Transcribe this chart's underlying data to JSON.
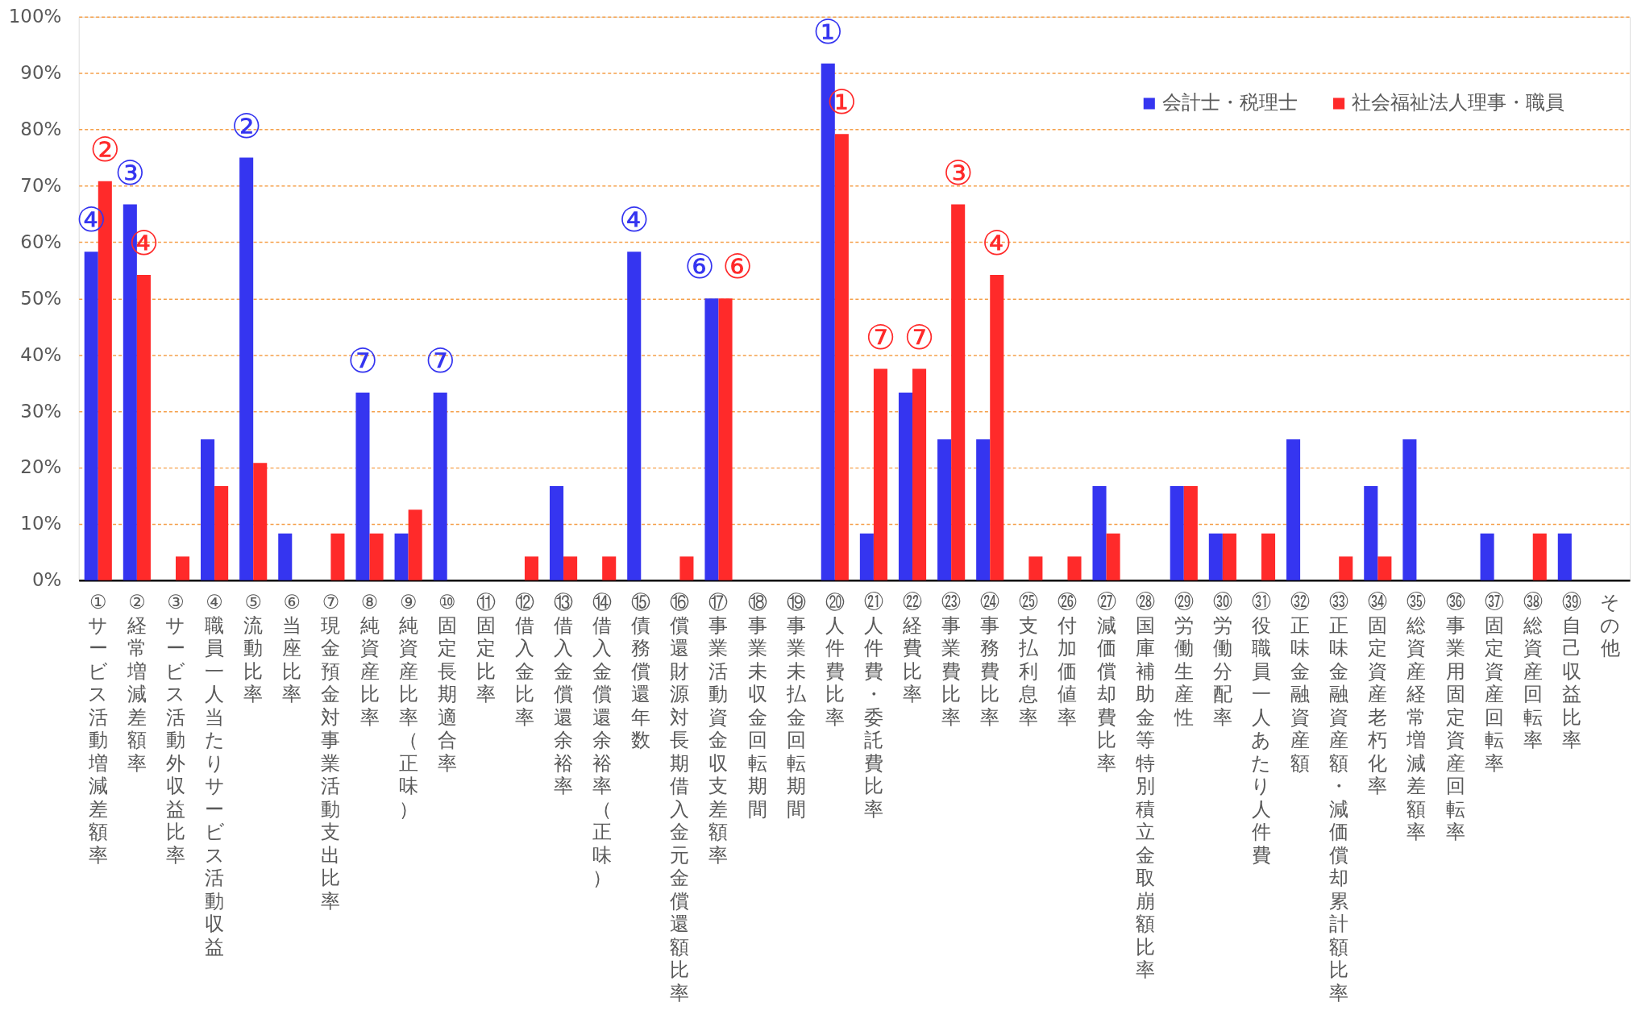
{
  "chart_data": {
    "type": "bar",
    "categories": [
      "①サービス活動増減差額率",
      "②経常増減差額率",
      "③サービス活動外収益比率",
      "④職員一人当たりサービス活動収益",
      "⑤流動比率",
      "⑥当座比率",
      "⑦現金預金対事業活動支出比率",
      "⑧純資産比率",
      "⑨純資産比率（正味）",
      "⑩固定長期適合率",
      "⑪固定比率",
      "⑫借入金比率",
      "⑬借入金償還余裕率",
      "⑭借入金償還余裕率（正味）",
      "⑮債務償還年数",
      "⑯償還財源対長期借入金元金償還額比率",
      "⑰事業活動資金収支差額率",
      "⑱事業未収金回転期間",
      "⑲事業未払金回転期間",
      "⑳人件費比率",
      "㉑人件費・委託費比率",
      "㉒経費比率",
      "㉓事業費比率",
      "㉔事務費比率",
      "㉕支払利息率",
      "㉖付加価値率",
      "㉗減価償却費比率",
      "㉘国庫補助金等特別積立金取崩額比率",
      "㉙労働生産性",
      "㉚労働分配率",
      "㉛役職員一人あたり人件費",
      "㉜正味金融資産額",
      "㉝正味金融資産額・減価償却累計額比率",
      "㉞固定資産老朽化率",
      "㉟総資産経常増減差額率",
      "㊱事業用固定資産回転率",
      "㊲固定資産回転率",
      "㊳総資産回転率",
      "㊴自己収益比率",
      "その他"
    ],
    "series": [
      {
        "name": "会計士・税理士",
        "color": "#3535f0",
        "values": [
          58.3,
          66.7,
          0,
          25,
          75,
          8.3,
          0,
          33.3,
          8.3,
          33.3,
          0,
          0,
          16.7,
          0,
          58.3,
          0,
          50,
          0,
          0,
          91.7,
          8.3,
          33.3,
          25,
          25,
          0,
          0,
          16.7,
          0,
          16.7,
          8.3,
          0,
          25,
          0,
          16.7,
          25,
          0,
          8.3,
          0,
          8.3,
          0
        ]
      },
      {
        "name": "社会福祉法人理事・職員",
        "color": "#ff2a2a",
        "values": [
          70.8,
          54.2,
          4.2,
          16.7,
          20.8,
          0,
          8.3,
          8.3,
          12.5,
          0,
          0,
          4.2,
          4.2,
          4.2,
          0,
          4.2,
          50,
          0,
          0,
          79.2,
          37.5,
          37.5,
          66.7,
          54.2,
          4.2,
          4.2,
          8.3,
          0,
          16.7,
          8.3,
          8.3,
          0,
          4.2,
          4.2,
          0,
          0,
          0,
          8.3,
          0,
          0
        ]
      }
    ],
    "ylim": [
      0,
      100
    ],
    "yticks": [
      {
        "value": 0,
        "label": "0%"
      },
      {
        "value": 10,
        "label": "10%"
      },
      {
        "value": 20,
        "label": "20%"
      },
      {
        "value": 30,
        "label": "30%"
      },
      {
        "value": 40,
        "label": "40%"
      },
      {
        "value": 50,
        "label": "50%"
      },
      {
        "value": 60,
        "label": "60%"
      },
      {
        "value": 70,
        "label": "70%"
      },
      {
        "value": 80,
        "label": "80%"
      },
      {
        "value": 90,
        "label": "90%"
      },
      {
        "value": 100,
        "label": "100%"
      }
    ],
    "grid": "y",
    "legend": "top right",
    "annotations": [
      {
        "text": "①",
        "x": "⑳人件費比率",
        "y": 91.7
      },
      {
        "text": "①",
        "x": "⑳人件費比率",
        "y": 79.2
      },
      {
        "text": "②",
        "x": "⑤流動比率",
        "y": 75
      },
      {
        "text": "②",
        "x": "①サービス活動増減差額率",
        "y": 70.8
      },
      {
        "text": "③",
        "x": "②経常増減差額率",
        "y": 66.7
      },
      {
        "text": "③",
        "x": "㉓事業費比率",
        "y": 66.7
      },
      {
        "text": "④",
        "x": "①サービス活動増減差額率",
        "y": 58.3
      },
      {
        "text": "④",
        "x": "⑮債務償還年数",
        "y": 58.3
      },
      {
        "text": "④",
        "x": "②経常増減差額率",
        "y": 54.2
      },
      {
        "text": "④",
        "x": "㉔事務費比率",
        "y": 54.2
      },
      {
        "text": "⑥",
        "x": "⑰事業活動資金収支差額率",
        "y": 50
      },
      {
        "text": "⑥",
        "x": "⑰事業活動資金収支差額率",
        "y": 50
      },
      {
        "text": "⑦",
        "x": "⑧純資産比率",
        "y": 33.3
      },
      {
        "text": "⑦",
        "x": "⑩固定長期適合率",
        "y": 33.3
      },
      {
        "text": "⑦",
        "x": "㉑人件費・委託費比率",
        "y": 37.5
      },
      {
        "text": "⑦",
        "x": "㉒経費比率",
        "y": 37.5
      }
    ]
  }
}
